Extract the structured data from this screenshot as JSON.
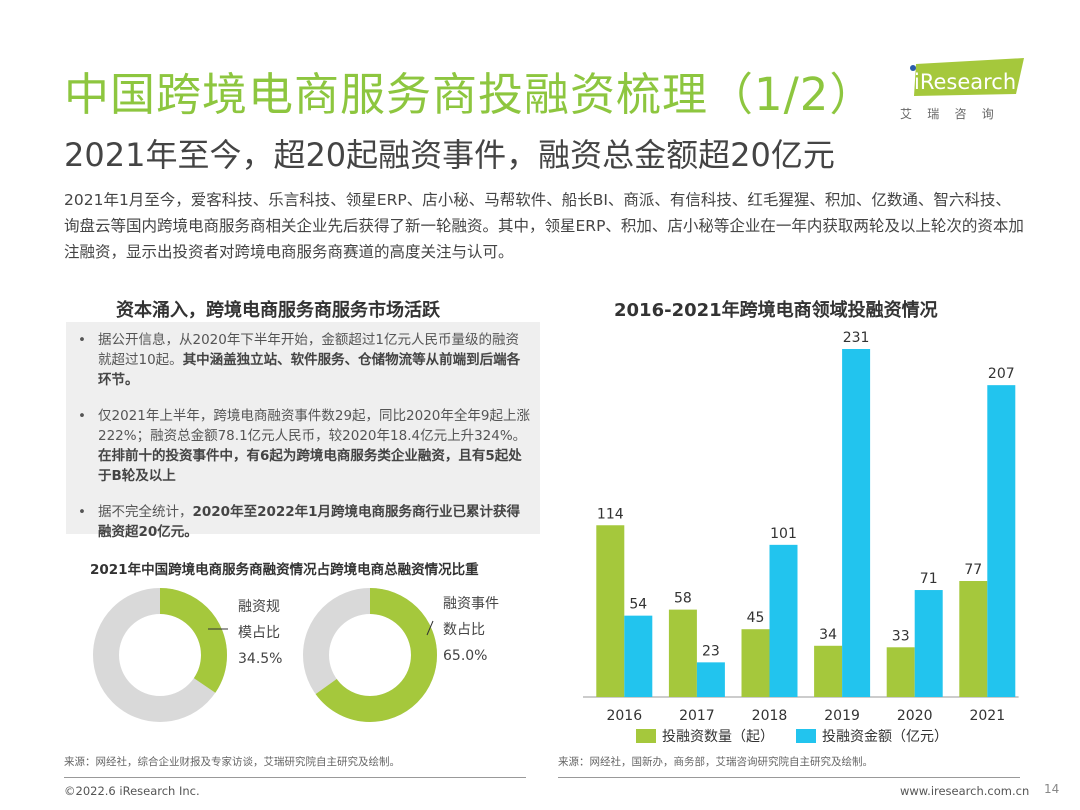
{
  "header": {
    "title": "中国跨境电商服务商投融资梳理（1/2）",
    "subtitle": "2021年至今，超20起融资事件，融资总金额超20亿元",
    "intro": "2021年1月至今，爱客科技、乐言科技、领星ERP、店小秘、马帮软件、船长BI、商派、有信科技、红毛猩猩、积加、亿数通、智六科技、询盘云等国内跨境电商服务商相关企业先后获得了新一轮融资。其中，领星ERP、积加、店小秘等企业在一年内获取两轮及以上轮次的资本加注融资，显示出投资者对跨境电商服务商赛道的高度关注与认可。"
  },
  "logo": {
    "text": "iResearch",
    "cn": "艾 瑞 咨 询",
    "color": "#a5c83c"
  },
  "left": {
    "title": "资本涌入，跨境电商服务商服务市场活跃",
    "bullets": [
      {
        "normal": "据公开信息，从2020年下半年开始，金额超过1亿元人民币量级的融资就超过10起。",
        "bold": "其中涵盖独立站、软件服务、仓储物流等从前端到后端各环节。"
      },
      {
        "normal": "仅2021年上半年，跨境电商融资事件数29起，同比2020年全年9起上涨222%；融资总金额78.1亿元人民币，较2020年18.4亿元上升324%。",
        "bold": "在排前十的投资事件中，有6起为跨境电商服务类企业融资，且有5起处于B轮及以上"
      },
      {
        "normal": "据不完全统计，",
        "bold": "2020年至2022年1月跨境电商服务商行业已累计获得融资超20亿元。"
      }
    ],
    "donut_title": "2021年中国跨境电商服务商融资情况占跨境电商总融资情况比重",
    "donuts": [
      {
        "label1": "融资规",
        "label2": "模占比",
        "value_label": "34.5%",
        "value": 34.5
      },
      {
        "label1": "融资事件",
        "label2": "数占比",
        "value_label": "65.0%",
        "value": 65.0
      }
    ],
    "source": "来源：网经社，综合企业财报及专家访谈，艾瑞研究院自主研究及绘制。"
  },
  "chart_data": {
    "type": "bar",
    "title": "2016-2021年跨境电商领域投融资情况",
    "categories": [
      "2016",
      "2017",
      "2018",
      "2019",
      "2020",
      "2021"
    ],
    "series": [
      {
        "name": "投融资数量（起）",
        "color": "#a5c83c",
        "values": [
          114,
          58,
          45,
          34,
          33,
          77
        ],
        "labels": [
          "114",
          "58",
          "45",
          "34",
          "33",
          "77"
        ]
      },
      {
        "name": "投融资金额（亿元）",
        "color": "#22c4ee",
        "values": [
          54,
          23,
          101,
          231,
          71,
          207
        ],
        "labels": [
          "54",
          "23",
          "101",
          "231",
          "71",
          "207"
        ]
      }
    ],
    "legend": "bottom",
    "grid": false
  },
  "right": {
    "source": "来源：网经社，国新办，商务部，艾瑞咨询研究院自主研究及绘制。"
  },
  "footer": {
    "copyright": "©2022.6 iResearch Inc.",
    "url": "www.iresearch.com.cn",
    "page": "14"
  },
  "colors": {
    "green": "#a5c83c",
    "blue": "#22c4ee",
    "donut_grey": "#d9d9d9",
    "title_green": "#8dc63f"
  }
}
